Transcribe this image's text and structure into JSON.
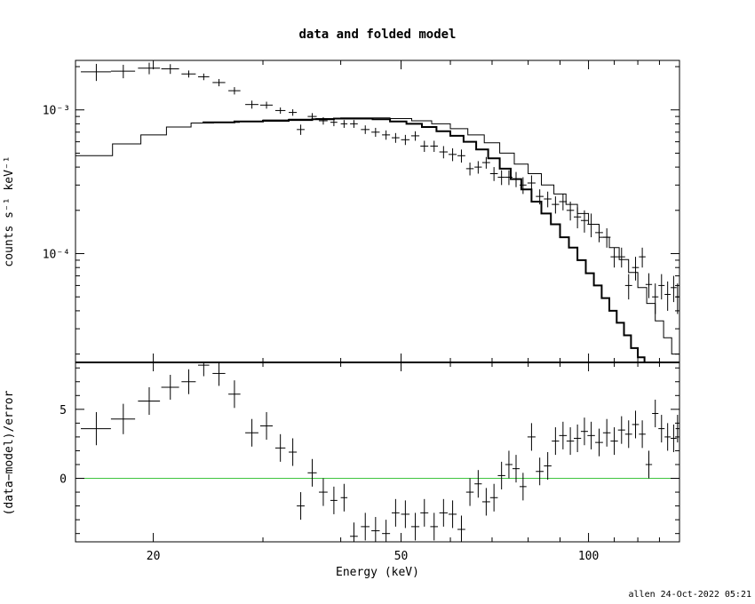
{
  "chart_data": [
    {
      "type": "scatter",
      "title": "data and folded model",
      "xlabel": "",
      "ylabel": "counts s⁻¹ keV⁻¹",
      "xscale": "log",
      "yscale": "log",
      "xlim": [
        15,
        140
      ],
      "ylim": [
        1.75e-05,
        0.00221
      ],
      "y_tick_labels": [
        {
          "value": 0.001,
          "label": "10⁻³"
        },
        {
          "value": 0.0001,
          "label": "10⁻⁴"
        }
      ],
      "series": [
        {
          "kind": "data",
          "points": [
            [
              16.2,
              0.00184,
              0.9,
              0.00025
            ],
            [
              17.9,
              0.00186,
              0.8,
              0.0002
            ],
            [
              19.7,
              0.00195,
              0.8,
              0.00018
            ],
            [
              21.3,
              0.00193,
              0.7,
              0.00015
            ],
            [
              22.8,
              0.00178,
              0.6,
              0.0001
            ],
            [
              24.1,
              0.0017,
              0.5,
              9e-05
            ],
            [
              25.5,
              0.00155,
              0.6,
              9e-05
            ],
            [
              27.0,
              0.00136,
              0.6,
              8e-05
            ],
            [
              28.8,
              0.00109,
              0.7,
              7e-05
            ],
            [
              30.4,
              0.00108,
              0.7,
              6e-05
            ],
            [
              32.0,
              0.00099,
              0.6,
              5e-05
            ],
            [
              33.5,
              0.00096,
              0.5,
              5e-05
            ],
            [
              34.5,
              0.00073,
              0.5,
              6e-05
            ],
            [
              36.0,
              0.0009,
              0.6,
              5e-05
            ],
            [
              37.5,
              0.00084,
              0.6,
              5e-05
            ],
            [
              39.0,
              0.00082,
              0.5,
              5e-05
            ],
            [
              40.5,
              0.0008,
              0.5,
              5e-05
            ],
            [
              42.0,
              0.0008,
              0.6,
              5e-05
            ],
            [
              43.8,
              0.00073,
              0.7,
              5e-05
            ],
            [
              45.5,
              0.0007,
              0.7,
              5e-05
            ],
            [
              47.3,
              0.00067,
              0.7,
              5e-05
            ],
            [
              49.0,
              0.00064,
              0.7,
              5e-05
            ],
            [
              50.8,
              0.00062,
              0.8,
              5e-05
            ],
            [
              52.7,
              0.00066,
              0.8,
              5e-05
            ],
            [
              54.5,
              0.00056,
              0.8,
              5e-05
            ],
            [
              56.5,
              0.00056,
              0.8,
              5e-05
            ],
            [
              58.5,
              0.00051,
              0.9,
              5e-05
            ],
            [
              60.5,
              0.00049,
              0.9,
              5e-05
            ],
            [
              62.5,
              0.00048,
              0.9,
              5e-05
            ],
            [
              64.5,
              0.00039,
              0.9,
              4e-05
            ],
            [
              66.5,
              0.0004,
              0.9,
              4e-05
            ],
            [
              68.5,
              0.00043,
              1.0,
              4e-05
            ],
            [
              70.5,
              0.00036,
              1.0,
              4e-05
            ],
            [
              72.5,
              0.00034,
              1.0,
              4e-05
            ],
            [
              74.5,
              0.00034,
              1.0,
              4e-05
            ],
            [
              76.5,
              0.00033,
              1.0,
              4e-05
            ],
            [
              78.5,
              0.0003,
              1.0,
              4e-05
            ],
            [
              81.0,
              0.00031,
              1.2,
              4e-05
            ],
            [
              83.5,
              0.00025,
              1.2,
              3e-05
            ],
            [
              86.0,
              0.00024,
              1.2,
              3e-05
            ],
            [
              88.5,
              0.00022,
              1.2,
              3e-05
            ],
            [
              91.0,
              0.00023,
              1.3,
              3e-05
            ],
            [
              93.5,
              0.0002,
              1.3,
              3e-05
            ],
            [
              96.0,
              0.00018,
              1.3,
              3e-05
            ],
            [
              98.5,
              0.00017,
              1.3,
              3e-05
            ],
            [
              101.0,
              0.00016,
              1.4,
              3e-05
            ],
            [
              104.0,
              0.00014,
              1.5,
              2e-05
            ],
            [
              107.0,
              0.00013,
              1.5,
              2e-05
            ],
            [
              110.0,
              9.5e-05,
              1.5,
              1.5e-05
            ],
            [
              113.0,
              9.5e-05,
              1.5,
              1.5e-05
            ],
            [
              116.0,
              6e-05,
              1.5,
              1.2e-05
            ],
            [
              119.0,
              8e-05,
              1.5,
              1.5e-05
            ],
            [
              122.0,
              9.5e-05,
              1.5,
              1.5e-05
            ],
            [
              125.0,
              6.1e-05,
              1.5,
              1.2e-05
            ],
            [
              128.0,
              5e-05,
              1.5,
              1.2e-05
            ],
            [
              131.0,
              6e-05,
              1.5,
              1.2e-05
            ],
            [
              134.0,
              5.2e-05,
              1.5,
              1.2e-05
            ],
            [
              137.0,
              5.8e-05,
              1.5,
              1.2e-05
            ],
            [
              139.0,
              5e-05,
              1.0,
              1.2e-05
            ]
          ]
        },
        {
          "kind": "model-thin",
          "steps": [
            [
              15.0,
              0.00048
            ],
            [
              17.2,
              0.00058
            ],
            [
              19.1,
              0.00067
            ],
            [
              21.0,
              0.00076
            ],
            [
              23.0,
              0.00081
            ],
            [
              25.0,
              0.00082
            ],
            [
              27.5,
              0.00083
            ],
            [
              30.0,
              0.00085
            ],
            [
              33.0,
              0.00086
            ],
            [
              36.5,
              0.00087
            ],
            [
              40.0,
              0.00088
            ],
            [
              44.0,
              0.00088
            ],
            [
              48.0,
              0.00087
            ],
            [
              52.0,
              0.00084
            ],
            [
              56.0,
              0.0008
            ],
            [
              60.0,
              0.00074
            ],
            [
              64.0,
              0.00067
            ],
            [
              68.0,
              0.00059
            ],
            [
              72.0,
              0.0005
            ],
            [
              76.0,
              0.00042
            ],
            [
              80.0,
              0.00036
            ],
            [
              84.0,
              0.0003
            ],
            [
              88.0,
              0.00026
            ],
            [
              92.0,
              0.00022
            ],
            [
              96.0,
              0.00019
            ],
            [
              100.0,
              0.00016
            ],
            [
              104.0,
              0.00013
            ],
            [
              108.0,
              0.00011
            ],
            [
              112.0,
              9.1e-05
            ],
            [
              116.0,
              7.4e-05
            ],
            [
              120.0,
              5.8e-05
            ],
            [
              124.0,
              4.5e-05
            ],
            [
              128.0,
              3.4e-05
            ],
            [
              132.0,
              2.6e-05
            ],
            [
              136.0,
              2e-05
            ],
            [
              140.0,
              1.7e-05
            ]
          ]
        },
        {
          "kind": "model-thick",
          "steps": [
            [
              24.0,
              0.00082
            ],
            [
              27.0,
              0.00083
            ],
            [
              30.0,
              0.00084
            ],
            [
              33.0,
              0.00085
            ],
            [
              36.0,
              0.00086
            ],
            [
              39.0,
              0.00087
            ],
            [
              42.0,
              0.00087
            ],
            [
              45.0,
              0.00086
            ],
            [
              48.0,
              0.00083
            ],
            [
              51.0,
              0.0008
            ],
            [
              54.0,
              0.00076
            ],
            [
              57.0,
              0.00071
            ],
            [
              60.0,
              0.00066
            ],
            [
              63.0,
              0.0006
            ],
            [
              66.0,
              0.00053
            ],
            [
              69.0,
              0.00046
            ],
            [
              72.0,
              0.00039
            ],
            [
              75.0,
              0.00033
            ],
            [
              78.0,
              0.00028
            ],
            [
              81.0,
              0.00023
            ],
            [
              84.0,
              0.00019
            ],
            [
              87.0,
              0.00016
            ],
            [
              90.0,
              0.00013
            ],
            [
              93.0,
              0.00011
            ],
            [
              96.0,
              9e-05
            ],
            [
              99.0,
              7.3e-05
            ],
            [
              102.0,
              6e-05
            ],
            [
              105.0,
              4.9e-05
            ],
            [
              108.0,
              4e-05
            ],
            [
              111.0,
              3.3e-05
            ],
            [
              114.0,
              2.7e-05
            ],
            [
              117.0,
              2.2e-05
            ],
            [
              120.0,
              1.9e-05
            ],
            [
              123.0,
              1.7e-05
            ]
          ]
        }
      ]
    },
    {
      "type": "scatter",
      "title": "",
      "xlabel": "Energy (keV)",
      "ylabel": "(data−model)/error",
      "xscale": "log",
      "xlim": [
        15,
        140
      ],
      "ylim": [
        -4.6,
        8.4
      ],
      "x_tick_labels": [
        {
          "value": 20,
          "label": "20"
        },
        {
          "value": 50,
          "label": "50"
        },
        {
          "value": 100,
          "label": "100"
        }
      ],
      "y_tick_labels": [
        {
          "value": 5,
          "label": "5"
        },
        {
          "value": 0,
          "label": "0"
        }
      ],
      "zero_line": {
        "value": 0,
        "color": "#3ec43e"
      },
      "series": [
        {
          "kind": "residuals",
          "points": [
            [
              16.2,
              3.6,
              0.9,
              1.2
            ],
            [
              17.9,
              4.3,
              0.8,
              1.1
            ],
            [
              19.7,
              5.6,
              0.8,
              1.0
            ],
            [
              21.3,
              6.6,
              0.7,
              0.9
            ],
            [
              22.8,
              7.0,
              0.6,
              0.9
            ],
            [
              24.1,
              8.2,
              0.5,
              0.8
            ],
            [
              25.5,
              7.6,
              0.6,
              0.9
            ],
            [
              27.0,
              6.1,
              0.6,
              1.0
            ],
            [
              28.8,
              3.3,
              0.7,
              1.0
            ],
            [
              30.4,
              3.8,
              0.7,
              1.0
            ],
            [
              32.0,
              2.2,
              0.6,
              1.0
            ],
            [
              33.5,
              1.9,
              0.5,
              1.0
            ],
            [
              34.5,
              -2.0,
              0.5,
              1.0
            ],
            [
              36.0,
              0.4,
              0.6,
              1.0
            ],
            [
              37.5,
              -1.0,
              0.6,
              1.0
            ],
            [
              39.0,
              -1.6,
              0.5,
              1.0
            ],
            [
              40.5,
              -1.4,
              0.5,
              1.0
            ],
            [
              42.0,
              -4.2,
              0.6,
              1.0
            ],
            [
              43.8,
              -3.5,
              0.7,
              1.0
            ],
            [
              45.5,
              -3.8,
              0.7,
              1.0
            ],
            [
              47.3,
              -4.0,
              0.7,
              1.0
            ],
            [
              49.0,
              -2.5,
              0.7,
              1.0
            ],
            [
              50.8,
              -2.6,
              0.8,
              1.0
            ],
            [
              52.7,
              -3.5,
              0.8,
              1.0
            ],
            [
              54.5,
              -2.5,
              0.8,
              1.0
            ],
            [
              56.5,
              -3.5,
              0.8,
              1.0
            ],
            [
              58.5,
              -2.5,
              0.9,
              1.0
            ],
            [
              60.5,
              -2.6,
              0.9,
              1.0
            ],
            [
              62.5,
              -3.7,
              0.9,
              1.0
            ],
            [
              64.5,
              -1.0,
              0.9,
              1.0
            ],
            [
              66.5,
              -0.4,
              0.9,
              1.0
            ],
            [
              68.5,
              -1.7,
              1.0,
              1.0
            ],
            [
              70.5,
              -1.4,
              1.0,
              1.0
            ],
            [
              72.5,
              0.2,
              1.0,
              1.0
            ],
            [
              74.5,
              1.0,
              1.0,
              1.0
            ],
            [
              76.5,
              0.7,
              1.0,
              1.0
            ],
            [
              78.5,
              -0.6,
              1.0,
              1.0
            ],
            [
              81.0,
              3.0,
              1.2,
              1.0
            ],
            [
              83.5,
              0.5,
              1.2,
              1.0
            ],
            [
              86.0,
              0.9,
              1.2,
              1.0
            ],
            [
              88.5,
              2.7,
              1.2,
              1.0
            ],
            [
              91.0,
              3.1,
              1.3,
              1.0
            ],
            [
              93.5,
              2.7,
              1.3,
              1.0
            ],
            [
              96.0,
              2.9,
              1.3,
              1.0
            ],
            [
              98.5,
              3.4,
              1.3,
              1.0
            ],
            [
              101.0,
              3.1,
              1.4,
              1.0
            ],
            [
              104.0,
              2.6,
              1.5,
              1.0
            ],
            [
              107.0,
              3.3,
              1.5,
              1.0
            ],
            [
              110.0,
              2.7,
              1.5,
              1.0
            ],
            [
              113.0,
              3.5,
              1.5,
              1.0
            ],
            [
              116.0,
              3.2,
              1.5,
              1.0
            ],
            [
              119.0,
              3.9,
              1.5,
              1.0
            ],
            [
              122.0,
              3.2,
              1.5,
              1.0
            ],
            [
              125.0,
              1.0,
              1.5,
              1.0
            ],
            [
              128.0,
              4.7,
              1.5,
              1.0
            ],
            [
              131.0,
              3.6,
              1.5,
              1.0
            ],
            [
              134.0,
              3.0,
              1.5,
              1.0
            ],
            [
              137.0,
              2.9,
              1.5,
              1.0
            ],
            [
              139.0,
              3.6,
              1.0,
              1.0
            ]
          ]
        }
      ]
    }
  ],
  "footer": "allen  24-Oct-2022 05:21"
}
